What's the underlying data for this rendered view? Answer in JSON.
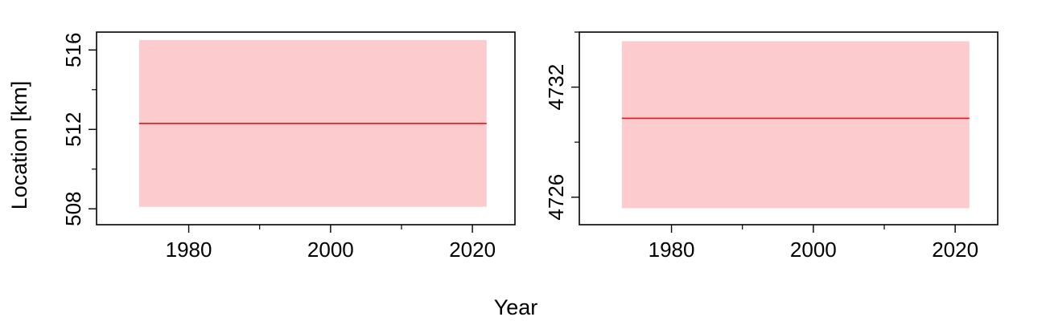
{
  "figure": {
    "shared_xlabel": "Year",
    "shared_ylabel": "Location [km]"
  },
  "colors": {
    "band": "#fccbcd",
    "line": "#e8141c",
    "axis": "#000000"
  },
  "chart_data": [
    {
      "type": "area",
      "title": "",
      "xlabel": "Year",
      "ylabel": "Location [km]",
      "xlim": [
        1967,
        2026
      ],
      "ylim": [
        507.2,
        516.9
      ],
      "xticks_major": [
        1980,
        2000,
        2020
      ],
      "xticks_minor": [
        1990,
        2010
      ],
      "yticks_major": [
        508,
        512,
        516
      ],
      "yticks_minor": [
        510,
        514
      ],
      "grid": false,
      "legend": "none",
      "series": [
        {
          "kind": "band",
          "x": [
            1973,
            2022
          ],
          "y_lower": [
            508.1,
            508.1
          ],
          "y_upper": [
            516.5,
            516.5
          ]
        },
        {
          "kind": "line",
          "x": [
            1973,
            2022
          ],
          "y": [
            512.3,
            512.3
          ]
        }
      ]
    },
    {
      "type": "area",
      "title": "",
      "xlabel": "Year",
      "ylabel": "",
      "xlim": [
        1967,
        2026
      ],
      "ylim": [
        4724.5,
        4735.0
      ],
      "xticks_major": [
        1980,
        2000,
        2020
      ],
      "xticks_minor": [
        1990,
        2010
      ],
      "yticks_major": [
        4726,
        4732
      ],
      "yticks_minor": [
        4729,
        4735
      ],
      "grid": false,
      "legend": "none",
      "series": [
        {
          "kind": "band",
          "x": [
            1973,
            2022
          ],
          "y_lower": [
            4725.4,
            4725.4
          ],
          "y_upper": [
            4734.5,
            4734.5
          ]
        },
        {
          "kind": "line",
          "x": [
            1973,
            2022
          ],
          "y": [
            4730.3,
            4730.3
          ]
        }
      ]
    }
  ]
}
